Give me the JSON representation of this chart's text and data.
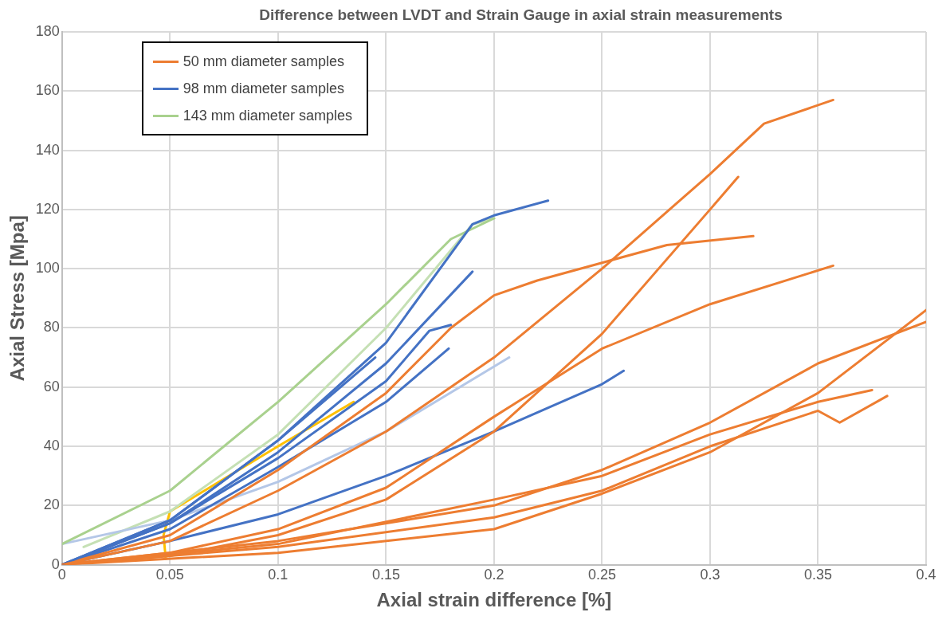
{
  "chart_data": {
    "type": "line",
    "title": "Difference between LVDT and Strain Gauge in axial strain measurements",
    "xlabel": "Axial strain difference [%]",
    "ylabel": "Axial Stress [Mpa]",
    "xlim": [
      0,
      0.4
    ],
    "xticks": [
      0,
      0.05,
      0.1,
      0.15,
      0.2,
      0.25,
      0.3,
      0.35,
      0.4
    ],
    "ylim": [
      0,
      180
    ],
    "yticks": [
      0,
      20,
      40,
      60,
      80,
      100,
      120,
      140,
      160,
      180
    ],
    "grid": true,
    "legend": "top left",
    "marker": "none",
    "line_style": "solid",
    "series": [
      {
        "name": "50 mm diameter samples",
        "color": "#ed7d31",
        "x": [
          0,
          0.05,
          0.1,
          0.15,
          0.2,
          0.25,
          0.3,
          0.325,
          0.357
        ],
        "values": [
          0,
          8,
          25,
          45,
          70,
          100,
          132,
          149,
          157
        ]
      },
      {
        "name": "98 mm diameter samples",
        "color": "#4472c4",
        "x": [
          0,
          0.05,
          0.1,
          0.15,
          0.19,
          0.2,
          0.225
        ],
        "values": [
          0,
          15,
          42,
          75,
          115,
          118,
          123
        ]
      },
      {
        "name": "143 mm diameter samples",
        "color": "#a9d18e",
        "x": [
          0,
          0.05,
          0.1,
          0.15,
          0.18,
          0.2
        ],
        "values": [
          7,
          25,
          55,
          88,
          110,
          117
        ]
      },
      {
        "color": "#ed7d31",
        "x": [
          0,
          0.05,
          0.1,
          0.15,
          0.2,
          0.25,
          0.3,
          0.313
        ],
        "values": [
          0,
          3,
          10,
          22,
          45,
          78,
          120,
          131
        ]
      },
      {
        "color": "#ed7d31",
        "x": [
          0,
          0.05,
          0.1,
          0.15,
          0.18,
          0.2,
          0.22,
          0.25,
          0.28,
          0.32
        ],
        "values": [
          0,
          10,
          32,
          58,
          80,
          91,
          96,
          102,
          108,
          111
        ]
      },
      {
        "color": "#ed7d31",
        "x": [
          0,
          0.05,
          0.1,
          0.15,
          0.2,
          0.25,
          0.3,
          0.357
        ],
        "values": [
          0,
          4,
          12,
          26,
          50,
          73,
          88,
          101
        ]
      },
      {
        "color": "#ed7d31",
        "x": [
          0,
          0.1,
          0.2,
          0.25,
          0.3,
          0.35,
          0.4
        ],
        "values": [
          0,
          8,
          20,
          32,
          48,
          68,
          82
        ]
      },
      {
        "color": "#ed7d31",
        "x": [
          0,
          0.1,
          0.2,
          0.25,
          0.3,
          0.35,
          0.4
        ],
        "values": [
          0,
          4,
          12,
          24,
          38,
          58,
          86
        ]
      },
      {
        "color": "#ed7d31",
        "x": [
          0,
          0.1,
          0.2,
          0.25,
          0.3,
          0.35,
          0.375
        ],
        "values": [
          0,
          7,
          22,
          30,
          44,
          55,
          59
        ]
      },
      {
        "color": "#ed7d31",
        "x": [
          0,
          0.1,
          0.2,
          0.25,
          0.3,
          0.35,
          0.36,
          0.382
        ],
        "values": [
          0,
          6,
          16,
          25,
          40,
          52,
          48,
          57
        ]
      },
      {
        "color": "#4472c4",
        "x": [
          0,
          0.05,
          0.1,
          0.15,
          0.19
        ],
        "values": [
          0,
          14,
          38,
          68,
          99
        ]
      },
      {
        "color": "#4472c4",
        "x": [
          0,
          0.05,
          0.1,
          0.15,
          0.17,
          0.18
        ],
        "values": [
          0,
          14,
          36,
          62,
          79,
          81
        ]
      },
      {
        "color": "#4472c4",
        "x": [
          0,
          0.05,
          0.1,
          0.15,
          0.179
        ],
        "values": [
          0,
          12,
          33,
          55,
          73
        ]
      },
      {
        "color": "#4472c4",
        "x": [
          0,
          0.05,
          0.1,
          0.145
        ],
        "values": [
          0,
          15,
          42,
          70
        ]
      },
      {
        "color": "#4472c4",
        "x": [
          0,
          0.05,
          0.1,
          0.15,
          0.2,
          0.25,
          0.26
        ],
        "values": [
          0,
          8,
          17,
          30,
          45,
          61,
          65.5
        ]
      },
      {
        "color": "#b4c7e7",
        "x": [
          0,
          0.05,
          0.1,
          0.15,
          0.207
        ],
        "values": [
          7,
          15,
          28,
          45,
          70
        ]
      },
      {
        "color": "#c5e0b4",
        "x": [
          0.01,
          0.05,
          0.1,
          0.15,
          0.19,
          0.2
        ],
        "values": [
          6,
          18,
          44,
          80,
          115,
          117
        ]
      },
      {
        "color": "#ffc000",
        "x": [
          0.048,
          0.047,
          0.05,
          0.1,
          0.135
        ],
        "values": [
          2,
          10,
          18,
          40,
          55
        ]
      }
    ]
  }
}
